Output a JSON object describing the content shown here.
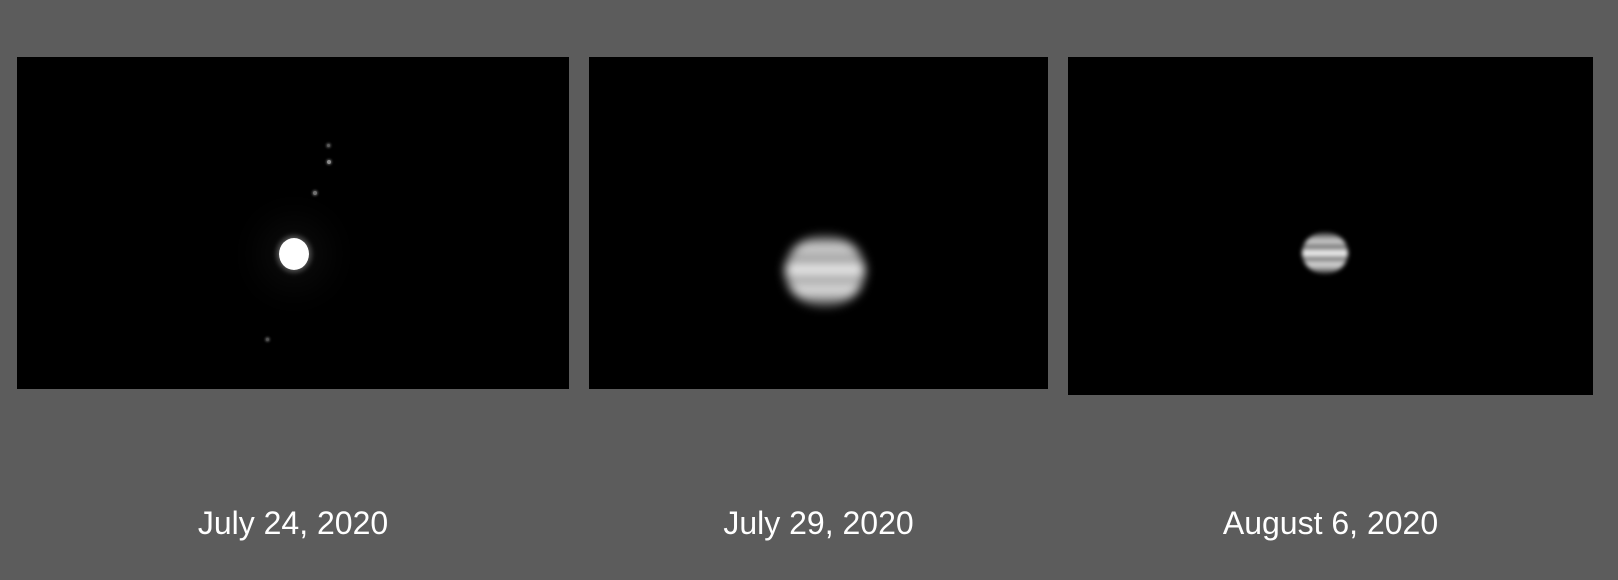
{
  "background_color": "#5c5c5c",
  "panel_color": "#000000",
  "panels": [
    {
      "caption": "July 24, 2020",
      "subject": "jupiter-overexposed-with-moons"
    },
    {
      "caption": "July 29, 2020",
      "subject": "jupiter-blurred-banded"
    },
    {
      "caption": "August 6, 2020",
      "subject": "jupiter-small-banded"
    }
  ]
}
